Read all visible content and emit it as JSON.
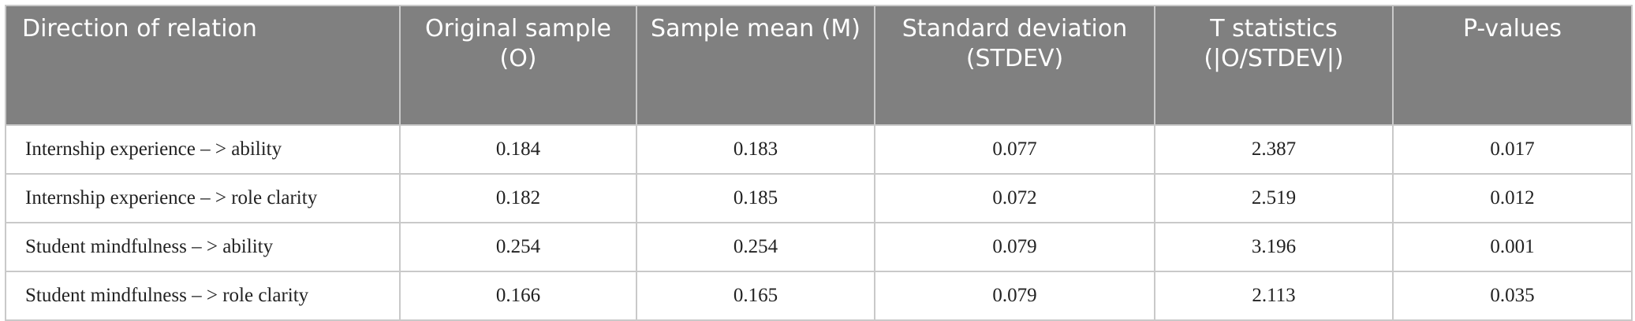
{
  "table": {
    "header": [
      "Direction of relation",
      "Original sample (O)",
      "Sample mean (M)",
      "Standard deviation (STDEV)",
      "T statistics (|O/STDEV|)",
      "P-values"
    ],
    "rows": [
      [
        "Internship experience – > ability",
        "0.184",
        "0.183",
        "0.077",
        "2.387",
        "0.017"
      ],
      [
        "Internship experience – > role clarity",
        "0.182",
        "0.185",
        "0.072",
        "2.519",
        "0.012"
      ],
      [
        "Student mindfulness – > ability",
        "0.254",
        "0.254",
        "0.079",
        "3.196",
        "0.001"
      ],
      [
        "Student mindfulness – > role clarity",
        "0.166",
        "0.165",
        "0.079",
        "2.113",
        "0.035"
      ]
    ]
  }
}
